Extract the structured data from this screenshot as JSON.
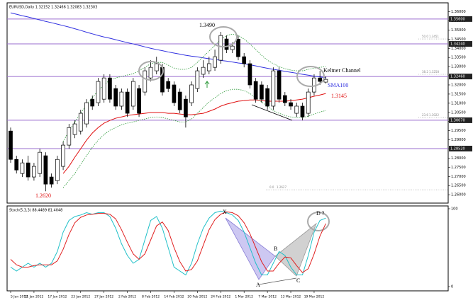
{
  "header": "EURUSD,Daily 1.32152 1.32466 1.32083 1.32303",
  "chart_data": [
    {
      "type": "candlestick",
      "categories": [
        "5 Jan 2012",
        null,
        null,
        null,
        "11 Jan 2012",
        null,
        null,
        null,
        "17 Jan 2012",
        null,
        null,
        null,
        "23 Jan 2012",
        null,
        null,
        null,
        "27 Jan 2012",
        null,
        null,
        null,
        "2 Feb 2012",
        null,
        null,
        null,
        "8 Feb 2012",
        null,
        null,
        null,
        "14 Feb 2012",
        null,
        null,
        null,
        "20 Feb 2012",
        null,
        null,
        null,
        "24 Feb 2012",
        null,
        null,
        null,
        "1 Mar 2012",
        null,
        null,
        null,
        "7 Mar 2012",
        null,
        null,
        null,
        "13 Mar 2012",
        null,
        null,
        null,
        "19 Mar 2012",
        null,
        null
      ],
      "ohlc": [
        [
          1.2948,
          1.2967,
          1.2774,
          1.2793
        ],
        [
          1.2793,
          1.2813,
          1.2716,
          1.2735
        ],
        [
          1.2716,
          1.2793,
          1.2697,
          1.2774
        ],
        [
          1.2774,
          1.2813,
          1.2677,
          1.2697
        ],
        [
          1.2697,
          1.2774,
          1.2677,
          1.2755
        ],
        [
          1.2716,
          1.2851,
          1.2697,
          1.2832
        ],
        [
          1.2813,
          1.2832,
          1.2619,
          1.2658
        ],
        [
          1.2697,
          1.2716,
          1.2639,
          1.2658
        ],
        [
          1.2677,
          1.2813,
          1.2658,
          1.2793
        ],
        [
          1.2755,
          1.289,
          1.2735,
          1.2871
        ],
        [
          1.2871,
          1.2987,
          1.2851,
          1.2967
        ],
        [
          1.2929,
          1.3006,
          1.2909,
          1.2987
        ],
        [
          1.2948,
          1.3064,
          1.2929,
          1.3045
        ],
        [
          1.2987,
          1.3122,
          1.2967,
          1.3103
        ],
        [
          1.3122,
          1.3142,
          1.3064,
          1.3084
        ],
        [
          1.3103,
          1.3238,
          1.3084,
          1.3219
        ],
        [
          1.3122,
          1.3258,
          1.3103,
          1.3238
        ],
        [
          1.3238,
          1.3258,
          1.3103,
          1.3122
        ],
        [
          1.318,
          1.32,
          1.3064,
          1.3084
        ],
        [
          1.3084,
          1.318,
          1.3064,
          1.3161
        ],
        [
          1.3161,
          1.318,
          1.3025,
          1.3045
        ],
        [
          1.3084,
          1.3238,
          1.3064,
          1.3219
        ],
        [
          1.318,
          1.32,
          1.3025,
          1.3045
        ],
        [
          1.3161,
          1.3296,
          1.3142,
          1.3277
        ],
        [
          1.3238,
          1.3335,
          1.3219,
          1.3296
        ],
        [
          1.3277,
          1.3354,
          1.3258,
          1.3316
        ],
        [
          1.3296,
          1.3316,
          1.3142,
          1.3161
        ],
        [
          1.3219,
          1.3238,
          1.3161,
          1.318
        ],
        [
          1.32,
          1.3219,
          1.3084,
          1.3103
        ],
        [
          1.3161,
          1.318,
          1.3045,
          1.3064
        ],
        [
          1.3122,
          1.3142,
          1.2967,
          1.3025
        ],
        [
          1.3103,
          1.3219,
          1.3084,
          1.32
        ],
        [
          1.318,
          1.3296,
          1.3161,
          1.3277
        ],
        [
          1.3258,
          1.3335,
          1.3238,
          1.3296
        ],
        [
          1.3277,
          1.3354,
          1.3258,
          1.3316
        ],
        [
          1.3296,
          1.3393,
          1.3277,
          1.3354
        ],
        [
          1.3335,
          1.349,
          1.3316,
          1.347
        ],
        [
          1.3451,
          1.347,
          1.3374,
          1.3393
        ],
        [
          1.3393,
          1.3432,
          1.3374,
          1.3412
        ],
        [
          1.345,
          1.347,
          1.3335,
          1.3354
        ],
        [
          1.3354,
          1.3374,
          1.3296,
          1.3316
        ],
        [
          1.3316,
          1.3335,
          1.318,
          1.32
        ],
        [
          1.3219,
          1.3238,
          1.3103,
          1.3122
        ],
        [
          1.32,
          1.3219,
          1.3103,
          1.3122
        ],
        [
          1.318,
          1.32,
          1.3064,
          1.3084
        ],
        [
          1.3084,
          1.3296,
          1.3064,
          1.3277
        ],
        [
          1.3277,
          1.3296,
          1.3103,
          1.3122
        ],
        [
          1.3142,
          1.3161,
          1.3084,
          1.3103
        ],
        [
          1.3103,
          1.3122,
          1.3064,
          1.3084
        ],
        [
          1.3045,
          1.3103,
          1.3025,
          1.3084
        ],
        [
          1.3084,
          1.3103,
          1.3006,
          1.3025
        ],
        [
          1.3045,
          1.318,
          1.3025,
          1.3161
        ],
        [
          1.3161,
          1.3258,
          1.3142,
          1.3238
        ],
        [
          1.3238,
          1.3277,
          1.32,
          1.3219
        ],
        [
          1.32152,
          1.32466,
          1.32083,
          1.32303
        ]
      ],
      "up_color": "#ffffff",
      "down_color": "#000000",
      "ylim": [
        1.2562,
        1.3633
      ],
      "yticks": [
        {
          "value": 1.26,
          "label": "1.26000"
        },
        {
          "value": 1.265,
          "label": "1.26500"
        },
        {
          "value": 1.27,
          "label": "1.27000"
        },
        {
          "value": 1.275,
          "label": "1.27500"
        },
        {
          "value": 1.28,
          "label": "1.28000"
        },
        {
          "value": 1.285,
          "label": "1.28500"
        },
        {
          "value": 1.29,
          "label": "1.29000"
        },
        {
          "value": 1.295,
          "label": "1.29500"
        },
        {
          "value": 1.3,
          "label": "1.30000"
        },
        {
          "value": 1.305,
          "label": "1.30500"
        },
        {
          "value": 1.31,
          "label": "1.31000"
        },
        {
          "value": 1.315,
          "label": "1.31500"
        },
        {
          "value": 1.32,
          "label": "1.32000"
        },
        {
          "value": 1.325,
          "label": "1.32500"
        },
        {
          "value": 1.33,
          "label": "1.33000"
        },
        {
          "value": 1.335,
          "label": "1.33500"
        },
        {
          "value": 1.34,
          "label": "1.34000"
        },
        {
          "value": 1.345,
          "label": "1.34500"
        },
        {
          "value": 1.35,
          "label": "1.35000"
        },
        {
          "value": 1.355,
          "label": "1.35500"
        },
        {
          "value": 1.36,
          "label": "1.36000"
        }
      ],
      "series": [
        {
          "color": "#3030e0",
          "style": "solid",
          "values": [
            1.3594,
            1.3586,
            1.3578,
            1.3571,
            1.3563,
            1.3555,
            1.3547,
            1.354,
            1.3532,
            1.3524,
            1.3516,
            1.3507,
            1.3498,
            1.3488,
            1.3479,
            1.347,
            1.3462,
            1.3455,
            1.3447,
            1.3439,
            1.3431,
            1.3424,
            1.3416,
            1.3408,
            1.34,
            1.3393,
            1.3387,
            1.338,
            1.3374,
            1.3368,
            1.3362,
            1.3357,
            1.3353,
            1.3348,
            1.3343,
            1.3339,
            1.3334,
            1.333,
            1.3325,
            1.332,
            1.3316,
            1.331,
            1.3304,
            1.3297,
            1.3291,
            1.3285,
            1.328,
            1.3274,
            1.3269,
            1.3264,
            1.3258,
            1.3253,
            1.3248,
            1.3244,
            1.3239
          ]
        },
        {
          "color": "#e01010",
          "style": "solid",
          "values": [
            null,
            null,
            null,
            null,
            null,
            null,
            null,
            null,
            null,
            1.2716,
            1.2755,
            1.2805,
            1.2851,
            1.2898,
            1.2937,
            1.2967,
            1.2991,
            1.3006,
            1.3018,
            1.3025,
            1.3033,
            1.3037,
            1.3041,
            1.3045,
            1.3049,
            1.3049,
            1.3049,
            1.3045,
            1.3045,
            1.3041,
            1.3037,
            1.3037,
            1.3041,
            1.3045,
            1.3056,
            1.3068,
            1.3084,
            1.3095,
            1.3103,
            1.3111,
            1.3114,
            1.3118,
            1.3118,
            1.3114,
            1.3111,
            1.3111,
            1.3111,
            1.3111,
            1.3114,
            1.3118,
            1.3122,
            1.313,
            1.3138,
            1.3145,
            1.3153
          ]
        },
        {
          "color": "#2e9a3a",
          "style": "dotted",
          "values": [
            null,
            null,
            null,
            null,
            null,
            null,
            null,
            null,
            null,
            1.289,
            1.2948,
            1.2998,
            1.3045,
            1.3091,
            1.313,
            1.3169,
            1.32,
            1.3227,
            1.3238,
            1.3246,
            1.3254,
            1.3261,
            1.3277,
            1.3296,
            1.3316,
            1.3323,
            1.3323,
            1.3308,
            1.3292,
            1.3285,
            1.3285,
            1.3296,
            1.3323,
            1.3354,
            1.3385,
            1.3416,
            1.3447,
            1.347,
            1.3478,
            1.347,
            1.3451,
            1.3424,
            1.3393,
            1.3362,
            1.3335,
            1.3316,
            1.33,
            1.3289,
            1.3281,
            1.3277,
            1.3277,
            1.3285,
            1.3292,
            1.3296,
            1.33
          ]
        },
        {
          "color": "#2e9a3a",
          "style": "dotted",
          "values": [
            null,
            null,
            null,
            null,
            null,
            null,
            null,
            null,
            null,
            1.2638,
            1.2677,
            1.2716,
            1.2766,
            1.2813,
            1.2859,
            1.2898,
            1.2929,
            1.2952,
            1.2967,
            1.2983,
            1.2991,
            1.2998,
            1.3006,
            1.3014,
            1.3022,
            1.3025,
            1.3022,
            1.3014,
            1.3006,
            1.2998,
            1.2998,
            1.3014,
            1.3045,
            1.3076,
            1.3107,
            1.313,
            1.3153,
            1.3169,
            1.3176,
            1.3176,
            1.3169,
            1.3153,
            1.313,
            1.3107,
            1.3083,
            1.306,
            1.3045,
            1.3033,
            1.3025,
            1.3022,
            1.3022,
            1.3029,
            1.3041,
            1.3052,
            1.306
          ]
        }
      ],
      "levels": [
        {
          "value": 1.356,
          "label": "1.35600"
        },
        {
          "value": 1.3424,
          "label": "1.34240"
        },
        {
          "value": 1.3246,
          "label": "1.32460"
        },
        {
          "value": 1.3007,
          "label": "1.30070"
        },
        {
          "value": 1.2852,
          "label": "1.28520"
        }
      ],
      "level_color": "#9a6ccf",
      "fib": [
        {
          "level": "50.0",
          "price": 1.3451
        },
        {
          "level": "38.2",
          "price": 1.3258
        },
        {
          "level": "23.6",
          "price": 1.3022
        },
        {
          "level": "0.0",
          "price": 1.2627
        }
      ],
      "annotations": [
        "1.3490",
        "Keltner Channel",
        "SMA100",
        "1.3145",
        "1.2620"
      ]
    },
    {
      "type": "line",
      "title": "Stoch(5,3,3) 88.4489 81.4048",
      "ylim": [
        0,
        100
      ],
      "yticks": [
        0,
        100
      ],
      "series": [
        {
          "color": "#20c0c8",
          "values": [
            25,
            20,
            25,
            30,
            25,
            30,
            25,
            30,
            45,
            70,
            85,
            90,
            92,
            95,
            93,
            95,
            95,
            90,
            75,
            55,
            40,
            30,
            35,
            60,
            85,
            90,
            75,
            50,
            25,
            20,
            15,
            30,
            55,
            75,
            88,
            95,
            97,
            95,
            92,
            85,
            70,
            50,
            30,
            15,
            15,
            30,
            45,
            40,
            25,
            15,
            15,
            40,
            70,
            85,
            88
          ]
        },
        {
          "color": "#e02020",
          "values": [
            35,
            28,
            25,
            25,
            27,
            28,
            28,
            28,
            33,
            48,
            67,
            82,
            89,
            92,
            93,
            94,
            94,
            93,
            87,
            73,
            57,
            42,
            35,
            42,
            60,
            78,
            83,
            72,
            50,
            32,
            20,
            22,
            33,
            53,
            73,
            86,
            93,
            96,
            95,
            91,
            82,
            68,
            50,
            32,
            20,
            20,
            30,
            38,
            37,
            27,
            18,
            23,
            42,
            65,
            81
          ]
        }
      ],
      "annotations": [
        "X",
        "A",
        "B",
        "C",
        "D ?"
      ]
    }
  ]
}
